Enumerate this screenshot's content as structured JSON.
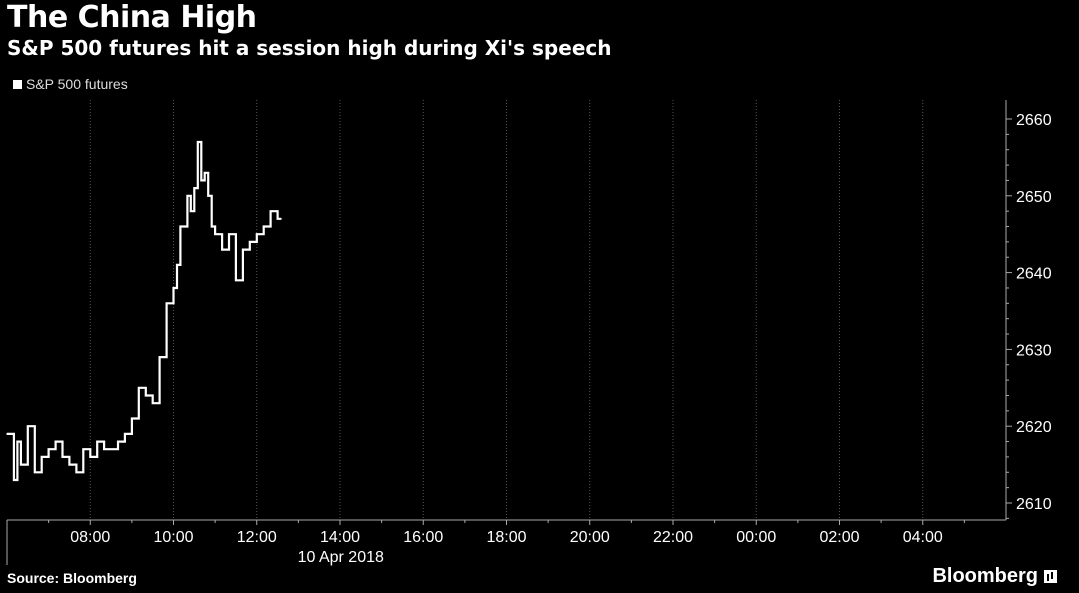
{
  "header": {
    "title": "The China High",
    "subtitle": "S&P 500 futures hit a session high during Xi's speech"
  },
  "footer": {
    "source": "Source: Bloomberg",
    "brand": "Bloomberg"
  },
  "colors": {
    "background": "#000000",
    "line": "#ffffff",
    "grid": "#555555"
  },
  "chart_data": {
    "type": "line",
    "title": "The China High",
    "subtitle": "S&P 500 futures hit a session high during Xi's speech",
    "xlabel": "10 Apr 2018",
    "ylabel": "",
    "legend": "top-left",
    "grid": "vertical",
    "x_range": [
      "06:00",
      "06:00 (next day)"
    ],
    "ylim": [
      2607,
      2661
    ],
    "y_ticks": [
      2610,
      2620,
      2630,
      2640,
      2650,
      2660
    ],
    "x_tick_labels": [
      "08:00",
      "10:00",
      "12:00",
      "14:00",
      "16:00",
      "18:00",
      "20:00",
      "22:00",
      "00:00",
      "02:00",
      "04:00"
    ],
    "series": [
      {
        "name": "S&P 500 futures",
        "x": [
          "06:00",
          "06:10",
          "06:15",
          "06:20",
          "06:30",
          "06:40",
          "06:50",
          "07:00",
          "07:10",
          "07:20",
          "07:30",
          "07:40",
          "07:50",
          "08:00",
          "08:10",
          "08:20",
          "08:30",
          "08:40",
          "08:50",
          "09:00",
          "09:10",
          "09:20",
          "09:30",
          "09:40",
          "09:50",
          "10:00",
          "10:05",
          "10:10",
          "10:20",
          "10:25",
          "10:30",
          "10:35",
          "10:40",
          "10:45",
          "10:50",
          "10:55",
          "11:00",
          "11:10",
          "11:20",
          "11:30",
          "11:40",
          "11:50",
          "12:00",
          "12:10",
          "12:20",
          "12:30",
          "12:35"
        ],
        "values": [
          2619,
          2613,
          2618,
          2615,
          2620,
          2614,
          2616,
          2617,
          2618,
          2616,
          2615,
          2614,
          2617,
          2616,
          2618,
          2617,
          2617,
          2618,
          2619,
          2621,
          2625,
          2624,
          2623,
          2629,
          2636,
          2638,
          2641,
          2646,
          2650,
          2648,
          2651,
          2657,
          2652,
          2653,
          2650,
          2646,
          2645,
          2643,
          2645,
          2639,
          2643,
          2644,
          2645,
          2646,
          2648,
          2647,
          2647
        ]
      }
    ]
  }
}
